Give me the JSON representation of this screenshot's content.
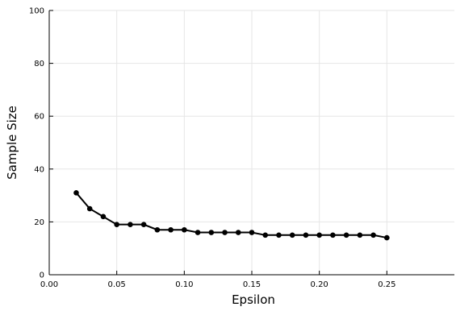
{
  "chart_data": {
    "type": "line",
    "title": "",
    "xlabel": "Epsilon",
    "ylabel": "Sample Size",
    "xlim": [
      0,
      0.3
    ],
    "ylim": [
      0,
      100
    ],
    "xticks": [
      "0.00",
      "0.05",
      "0.10",
      "0.15",
      "0.20",
      "0.25"
    ],
    "yticks": [
      "0",
      "20",
      "40",
      "60",
      "80",
      "100"
    ],
    "xtick_values": [
      0,
      0.05,
      0.1,
      0.15,
      0.2,
      0.25
    ],
    "ytick_values": [
      0,
      20,
      40,
      60,
      80,
      100
    ],
    "grid": true,
    "legend": "none",
    "series": [
      {
        "color": "#000000",
        "x": [
          0.02,
          0.03,
          0.04,
          0.05,
          0.06,
          0.07,
          0.08,
          0.09,
          0.1,
          0.11,
          0.12,
          0.13,
          0.14,
          0.15,
          0.16,
          0.17,
          0.18,
          0.19,
          0.2,
          0.21,
          0.22,
          0.23,
          0.24,
          0.25
        ],
        "y": [
          31,
          25,
          22,
          19,
          19,
          19,
          17,
          17,
          17,
          16,
          16,
          16,
          16,
          16,
          15,
          15,
          15,
          15,
          15,
          15,
          15,
          15,
          15,
          14
        ]
      }
    ]
  }
}
